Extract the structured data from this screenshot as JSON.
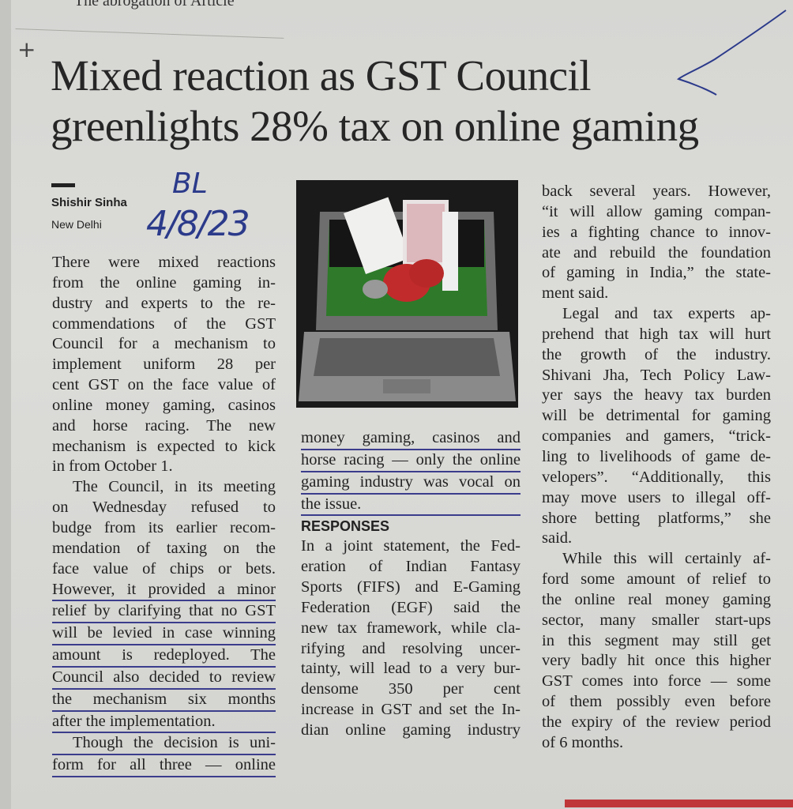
{
  "previous_article_fragment": "“The abrogation of Article",
  "headline": [
    "Mixed reaction as GST Council",
    "greenlights 28% tax on online gaming"
  ],
  "byline": {
    "author": "Shishir Sinha",
    "location": "New Delhi"
  },
  "handwritten_note": {
    "initials": "BL",
    "date": "4/8/23"
  },
  "photo": {
    "subject": "laptop-with-playing-cards-and-casino-chips"
  },
  "columns": [
    {
      "paragraphs": [
        {
          "indent": false,
          "lines": [
            "There were mixed reactions",
            "from the online gaming in-",
            "dustry and experts to the re-",
            "commendations of the GST",
            "Council for a mechanism to",
            "implement uniform 28 per",
            "cent GST on the face value of",
            "online money gaming, casinos",
            "and horse racing. The new",
            "mechanism is expected to kick",
            "in from October 1."
          ]
        },
        {
          "indent": true,
          "lines": [
            "The Council, in its meeting",
            "on Wednesday refused to",
            "budge from its earlier recom-",
            "mendation of taxing on the",
            "face value of chips or bets.",
            "However, it provided a minor",
            "relief by clarifying that no GST",
            "will be levied in case winning",
            "amount is redeployed. The",
            "Council also decided to review",
            "the mechanism six months",
            "after the implementation."
          ]
        },
        {
          "indent": true,
          "continues": true,
          "lines": [
            "Though the decision is uni-",
            "form for all three — online"
          ]
        }
      ]
    },
    {
      "paragraphs": [
        {
          "indent": false,
          "lines": [
            "money gaming, casinos and",
            "horse racing — only the online",
            "gaming industry was vocal on",
            "the issue."
          ]
        },
        {
          "heading": "RESPONSES"
        },
        {
          "indent": false,
          "continues": true,
          "lines": [
            "In a joint statement, the Fed-",
            "eration of Indian Fantasy",
            "Sports (FIFS) and E-Gaming",
            "Federation (EGF) said the",
            "new tax framework, while cla-",
            "rifying and resolving uncer-",
            "tainty, will lead to a very bur-",
            "densome 350 per cent",
            "increase in GST and set the In-",
            "dian online gaming industry"
          ]
        }
      ]
    },
    {
      "paragraphs": [
        {
          "indent": false,
          "lines": [
            "back several years. However,",
            "“it will allow gaming compan-",
            "ies a fighting chance to innov-",
            "ate and rebuild the foundation",
            "of gaming in India,” the state-",
            "ment said."
          ]
        },
        {
          "indent": true,
          "lines": [
            "Legal and tax experts ap-",
            "prehend that high tax will hurt",
            "the growth of the industry.",
            "Shivani Jha, Tech Policy Law-",
            "yer says the heavy tax burden",
            "will be detrimental for gaming",
            "companies and gamers, “trick-",
            "ling to livelihoods of game de-",
            "velopers”. “Additionally, this",
            "may move users to illegal off-",
            "shore betting platforms,” she",
            "said."
          ]
        },
        {
          "indent": true,
          "lines": [
            "While this will certainly af-",
            "ford some amount of relief to",
            "the online real money gaming",
            "sector, many smaller start-ups",
            "in this segment may still get",
            "very badly hit once this higher",
            "GST comes into force — some",
            "of them possibly even before",
            "the expiry of the review period",
            "of 6 months."
          ]
        }
      ]
    }
  ],
  "colors": {
    "paper": "#d8d8d5",
    "ink": "#222222",
    "pen": "#2b3a8a",
    "accent_bar": "#c0373a"
  }
}
